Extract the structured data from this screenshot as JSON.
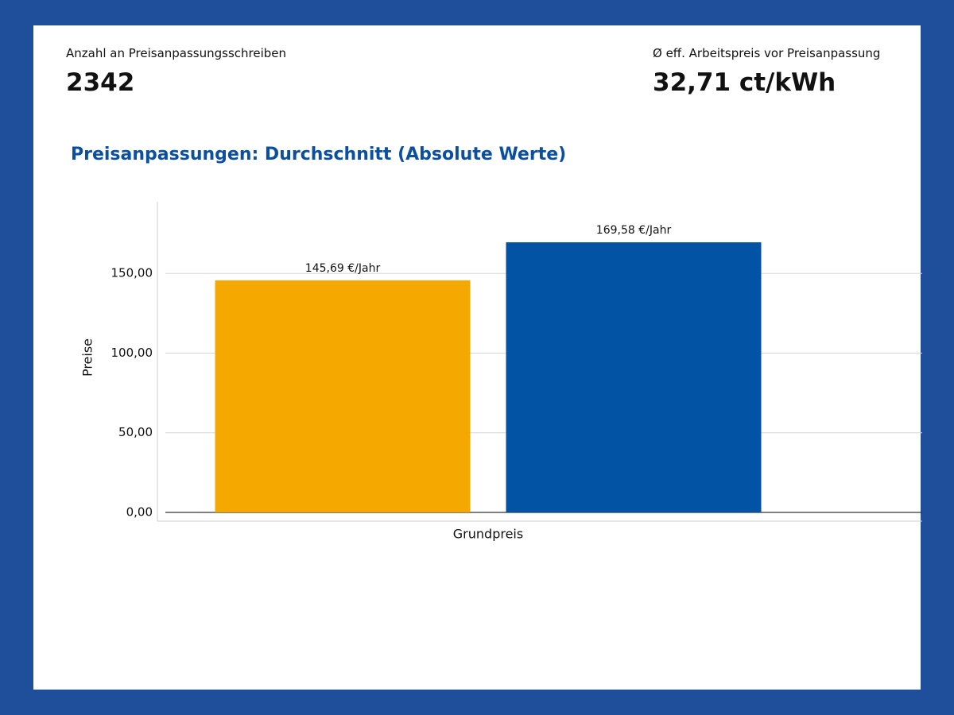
{
  "kpis": [
    {
      "label": "Anzahl an Preisanpassungsschreiben",
      "value": "2342"
    },
    {
      "label": "Ø eff. Arbeitspreis vor Preisanpassung",
      "value": "32,71 ct/kWh"
    }
  ],
  "chart_data": {
    "type": "bar",
    "title": "Preisanpassungen: Durchschnitt (Absolute Werte)",
    "y_label": "Preise",
    "categories": [
      "Grundpreis"
    ],
    "series": [
      {
        "color": "#f4a800",
        "values": [
          145.69
        ],
        "value_labels": [
          "145,69 €/Jahr"
        ]
      },
      {
        "color": "#0353a4",
        "values": [
          169.58
        ],
        "value_labels": [
          "169,58 €/Jahr"
        ]
      }
    ],
    "ylim": [
      -5.5,
      195
    ],
    "yticks": [
      {
        "value": 0,
        "label": "0,00"
      },
      {
        "value": 50,
        "label": "50,00"
      },
      {
        "value": 100,
        "label": "100,00"
      },
      {
        "value": 150,
        "label": "150,00"
      }
    ],
    "grid": true
  }
}
